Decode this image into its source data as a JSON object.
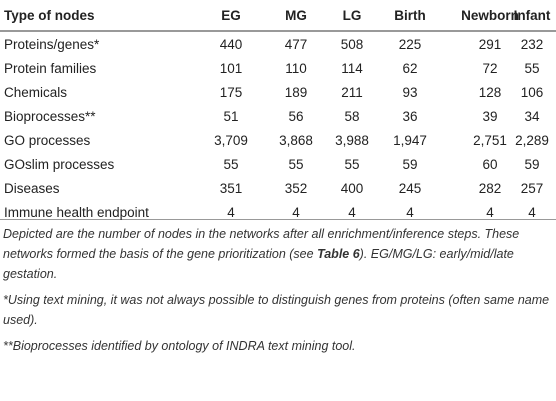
{
  "table": {
    "header": [
      "Type of nodes",
      "EG",
      "MG",
      "LG",
      "Birth",
      "Newborn",
      "Infant"
    ],
    "rows": [
      [
        "Proteins/genes*",
        "440",
        "477",
        "508",
        "225",
        "291",
        "232"
      ],
      [
        "Protein families",
        "101",
        "110",
        "114",
        "62",
        "72",
        "55"
      ],
      [
        "Chemicals",
        "175",
        "189",
        "211",
        "93",
        "128",
        "106"
      ],
      [
        "Bioprocesses**",
        "51",
        "56",
        "58",
        "36",
        "39",
        "34"
      ],
      [
        "GO processes",
        "3,709",
        "3,868",
        "3,988",
        "1,947",
        "2,751",
        "2,289"
      ],
      [
        "GOslim processes",
        "55",
        "55",
        "55",
        "59",
        "60",
        "59"
      ],
      [
        "Diseases",
        "351",
        "352",
        "400",
        "245",
        "282",
        "257"
      ],
      [
        "Immune health endpoint",
        "4",
        "4",
        "4",
        "4",
        "4",
        "4"
      ]
    ]
  },
  "notes": [
    {
      "before": "Depicted are the number of nodes in the networks after all enrichment/inference steps. These networks formed the basis of the gene prioritization (see ",
      "bold": "Table 6",
      "after": "). EG/MG/LG: early/mid/late gestation."
    },
    {
      "text": "*Using text mining, it was not always possible to distinguish genes from proteins (often same name used)."
    },
    {
      "text": "**Bioprocesses identified by ontology of INDRA text mining tool."
    }
  ]
}
